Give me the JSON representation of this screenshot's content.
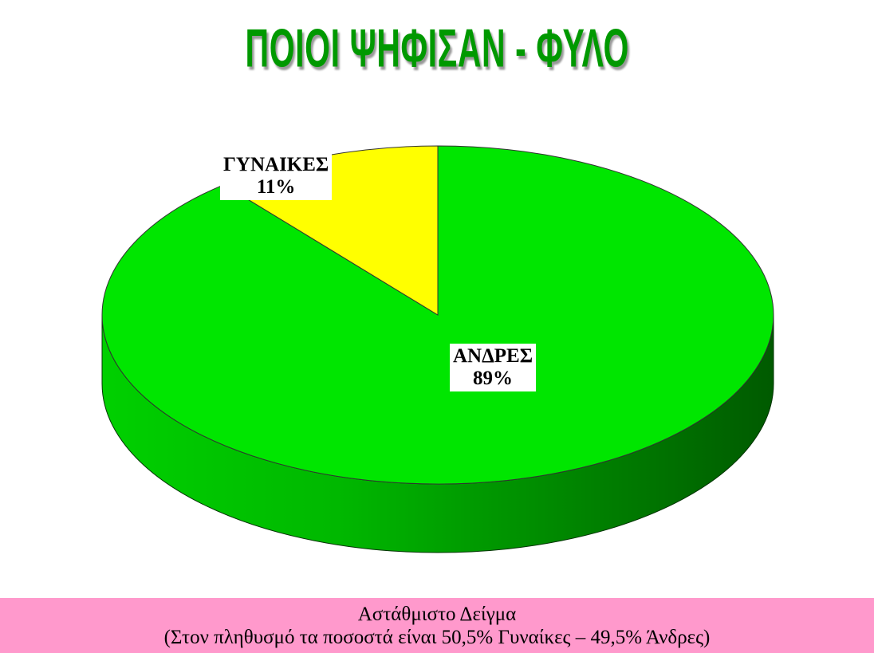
{
  "chart_data": {
    "type": "pie",
    "style": "3d",
    "title": "ΠΟΙΟΙ ΨΗΦΙΣΑΝ - ΦΥΛΟ",
    "slices": [
      {
        "label": "ΓΥΝΑΙΚΕΣ",
        "value": 11,
        "value_label": "11%",
        "color": "#ffff00"
      },
      {
        "label": "ΑΝΔΡΕΣ",
        "value": 89,
        "value_label": "89%",
        "color": "#00e600"
      }
    ],
    "legend": "none"
  },
  "footer": {
    "line1": "Αστάθμιστο Δείγμα",
    "line2": "(Στον πληθυσμό τα ποσοστά είναι 50,5% Γυναίκες – 49,5% Άνδρες)"
  },
  "colors": {
    "title": "#009900",
    "banner": "#ff99cc",
    "side_dark": "#005a00"
  }
}
